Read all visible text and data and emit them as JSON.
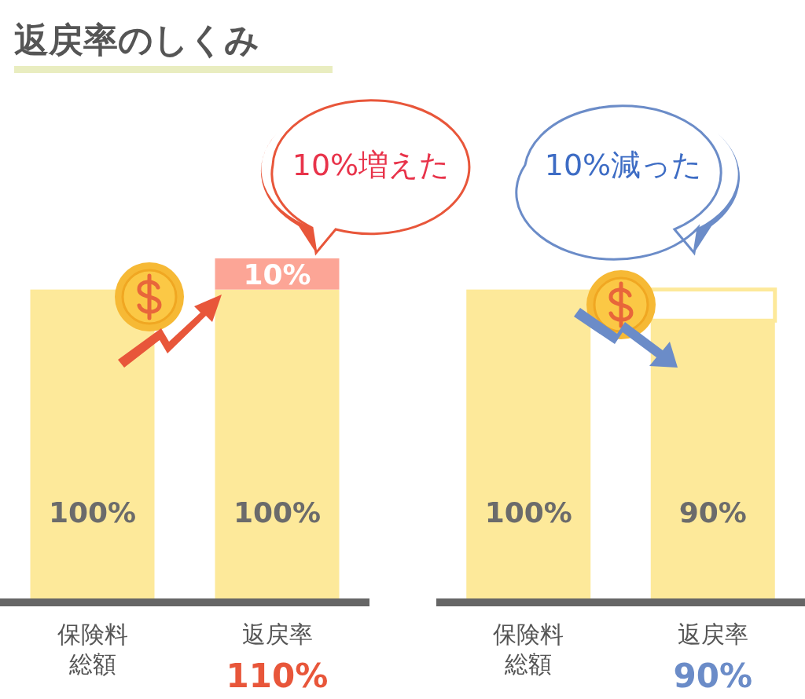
{
  "chart_data": [
    {
      "type": "bar",
      "title": "返戻率のしくみ",
      "stacked": true,
      "categories": [
        "保険料総額",
        "返戻率"
      ],
      "series": [
        {
          "color": "#fde99a",
          "values": [
            100,
            100
          ],
          "value_labels": [
            "100%",
            "100%"
          ]
        },
        {
          "color": "#fca596",
          "values": [
            null,
            10
          ],
          "value_labels": [
            null,
            "10%"
          ]
        }
      ],
      "annotations": [
        "10%増えた",
        "110%"
      ]
    },
    {
      "type": "bar",
      "stacked": true,
      "categories": [
        "保険料総額",
        "返戻率"
      ],
      "series": [
        {
          "color": "#fde99a",
          "values": [
            100,
            90
          ],
          "value_labels": [
            "100%",
            "90%"
          ]
        },
        {
          "color": "#ffffff",
          "values": [
            null,
            10
          ],
          "value_labels": [
            null,
            null
          ]
        }
      ],
      "annotations": [
        "10%減った",
        "90%"
      ]
    }
  ]
}
